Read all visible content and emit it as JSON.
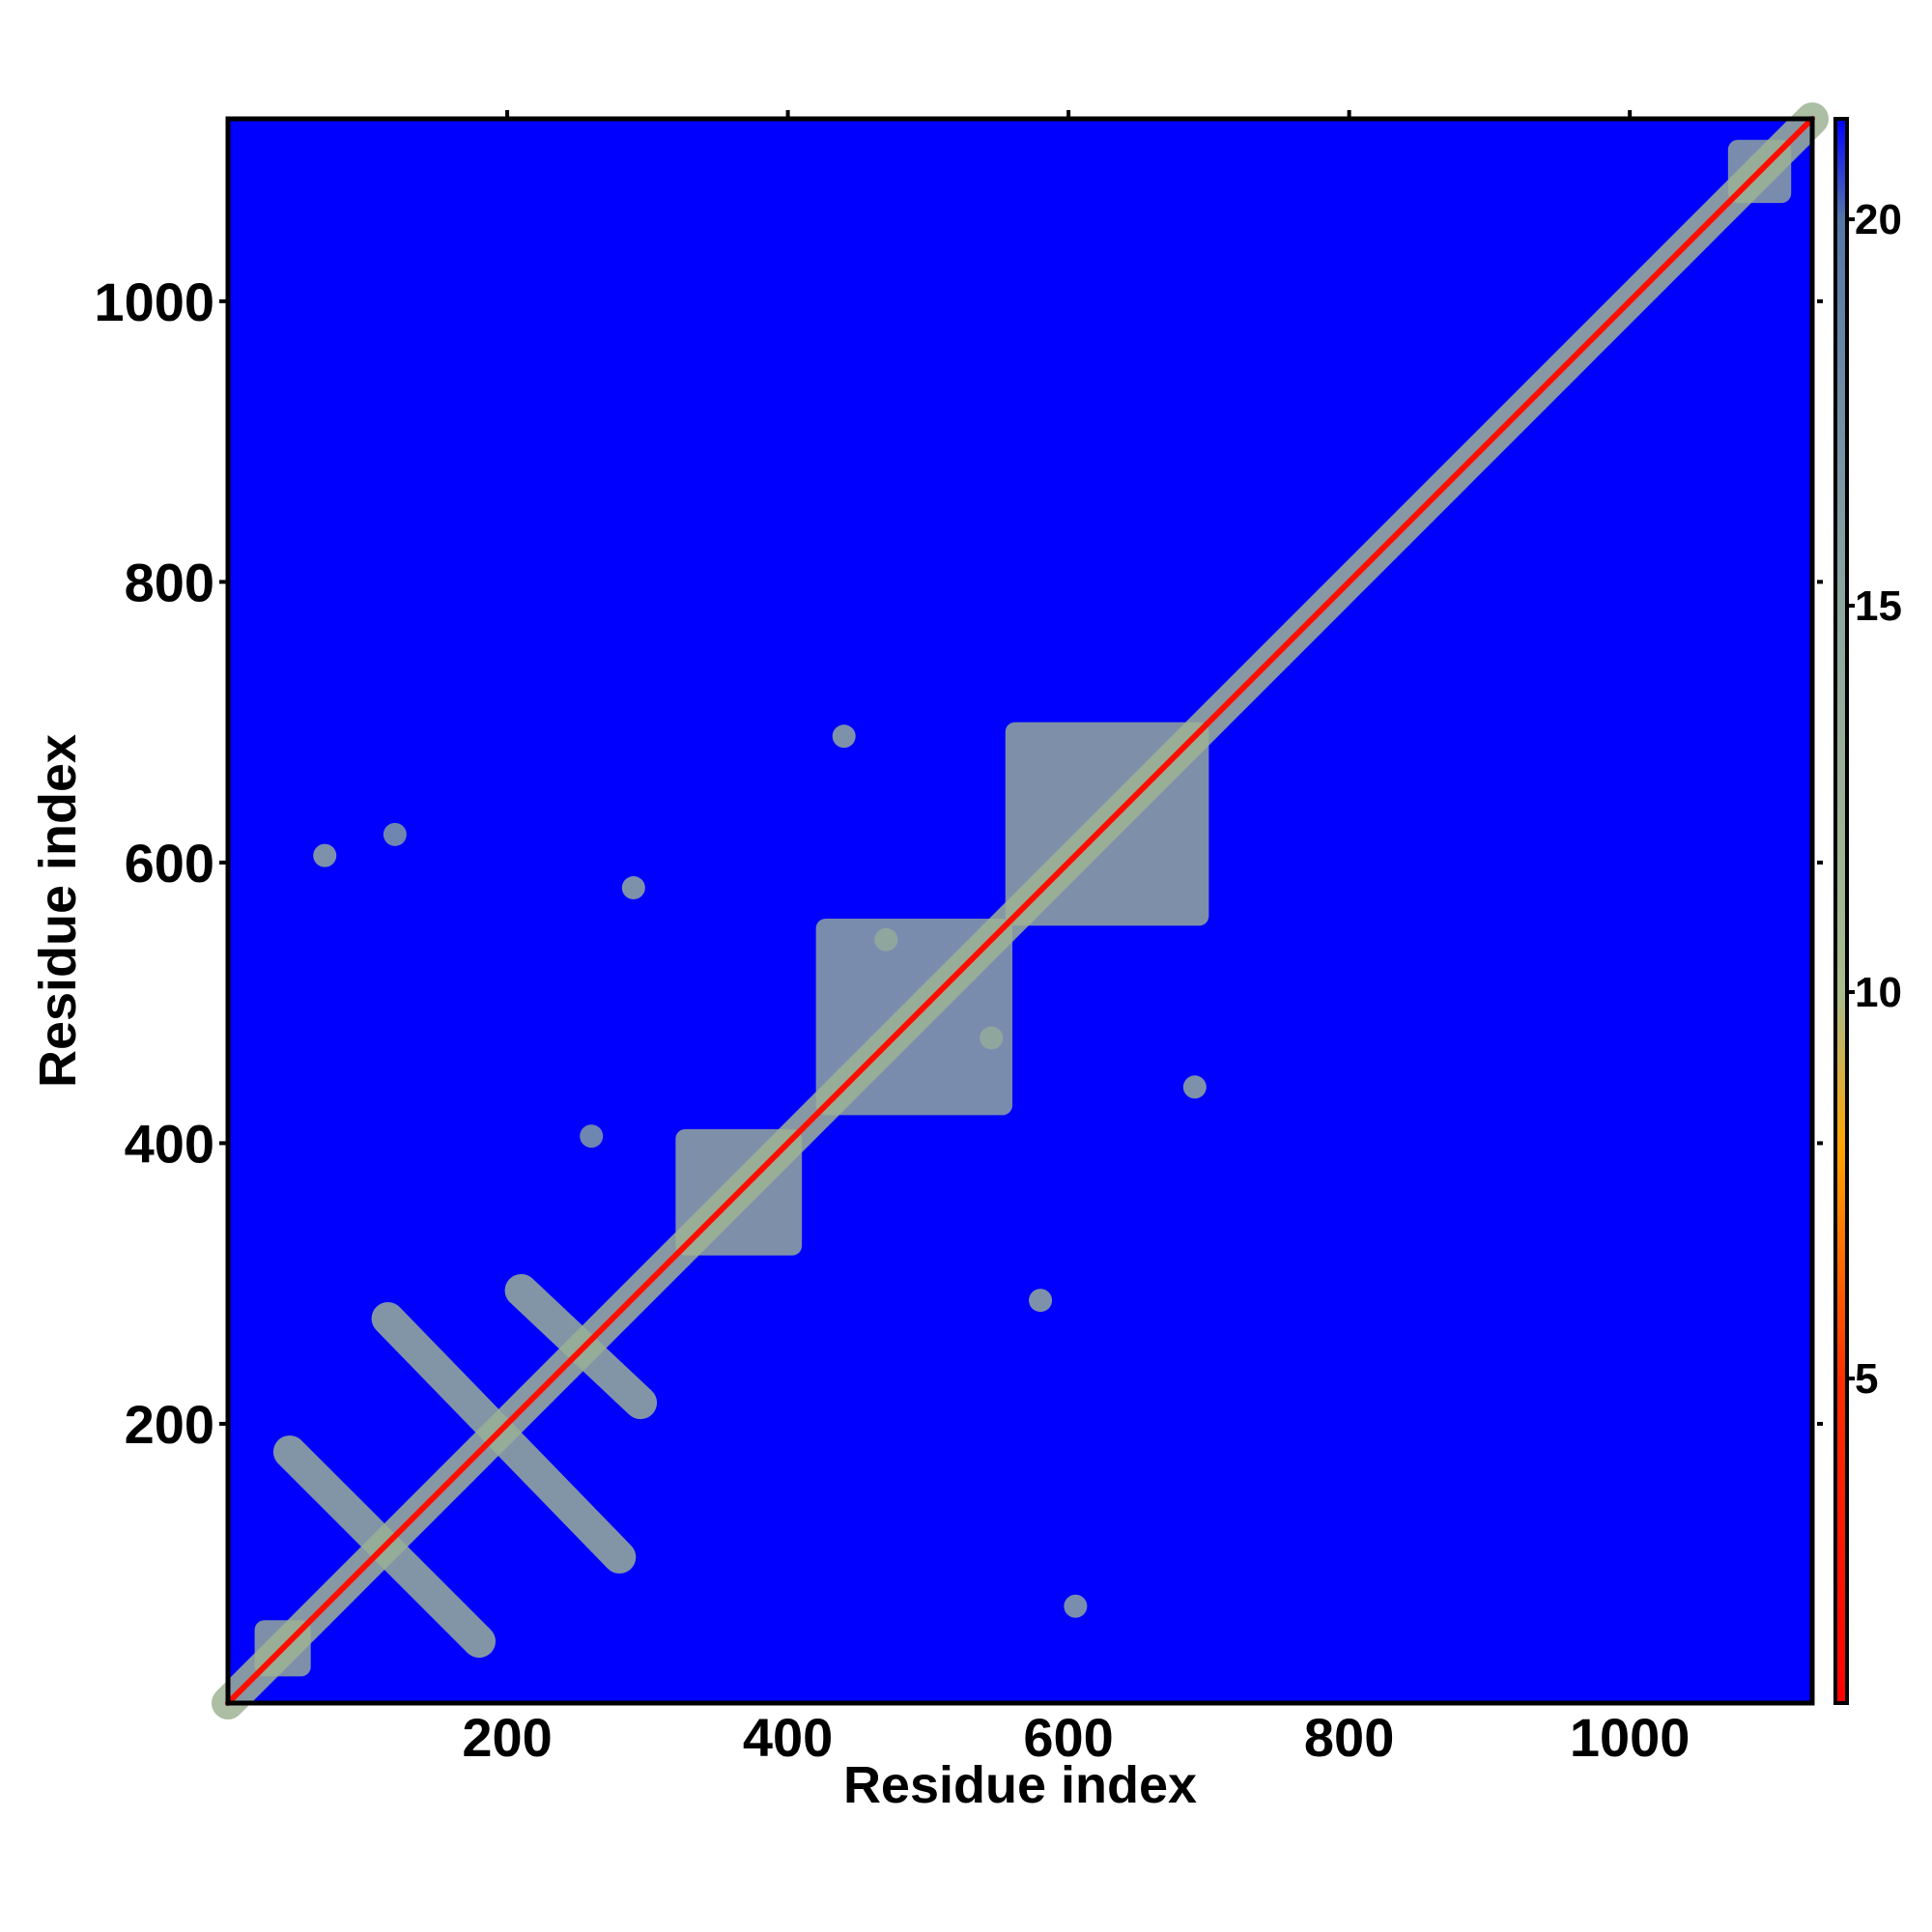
{
  "chart_data": {
    "type": "heatmap",
    "xlabel": "Residue index",
    "ylabel": "Residue index",
    "xlim": [
      1,
      1130
    ],
    "ylim": [
      1,
      1130
    ],
    "xticks": [
      200,
      400,
      600,
      800,
      1000
    ],
    "yticks": [
      200,
      400,
      600,
      800,
      1000
    ],
    "clim": [
      0.8,
      21.3
    ],
    "cticks": [
      5,
      10,
      15,
      20
    ],
    "colorscale": [
      {
        "value": 0.8,
        "color": "#ff0000"
      },
      {
        "value": 5,
        "color": "#ff3000"
      },
      {
        "value": 8,
        "color": "#ffa500"
      },
      {
        "value": 10,
        "color": "#a8bc8c"
      },
      {
        "value": 15,
        "color": "#8ea6a0"
      },
      {
        "value": 20,
        "color": "#5577a8"
      },
      {
        "value": 21.3,
        "color": "#0000ff"
      }
    ],
    "blocks": [
      {
        "x": [
          20,
          60
        ],
        "y": [
          20,
          60
        ],
        "value": 12
      },
      {
        "x": [
          320,
          410
        ],
        "y": [
          320,
          410
        ],
        "value": 12
      },
      {
        "x": [
          420,
          560
        ],
        "y": [
          420,
          560
        ],
        "value": 13
      },
      {
        "x": [
          555,
          700
        ],
        "y": [
          555,
          700
        ],
        "value": 12
      },
      {
        "x": [
          1070,
          1115
        ],
        "y": [
          1070,
          1115
        ],
        "value": 13
      }
    ],
    "spots": [
      {
        "x": 70,
        "y": 605,
        "value": 14
      },
      {
        "x": 290,
        "y": 582,
        "value": 14
      },
      {
        "x": 440,
        "y": 690,
        "value": 14
      },
      {
        "x": 690,
        "y": 440,
        "value": 14
      },
      {
        "x": 580,
        "y": 288,
        "value": 14
      },
      {
        "x": 470,
        "y": 545,
        "value": 14
      },
      {
        "x": 545,
        "y": 475,
        "value": 14
      },
      {
        "x": 605,
        "y": 70,
        "value": 15
      },
      {
        "x": 120,
        "y": 620,
        "value": 16
      },
      {
        "x": 260,
        "y": 405,
        "value": 16
      }
    ],
    "lines": [
      {
        "x": [
          1,
          1130
        ],
        "y": [
          1,
          1130
        ],
        "value": 12
      },
      {
        "x": [
          45,
          180
        ],
        "y": [
          180,
          45
        ],
        "value": 13
      },
      {
        "x": [
          115,
          280
        ],
        "y": [
          275,
          105
        ],
        "value": 13
      },
      {
        "x": [
          210,
          295
        ],
        "y": [
          295,
          215
        ],
        "value": 13
      },
      {
        "x": [
          1,
          1130
        ],
        "y": [
          1,
          1130
        ],
        "value": 2
      }
    ]
  }
}
